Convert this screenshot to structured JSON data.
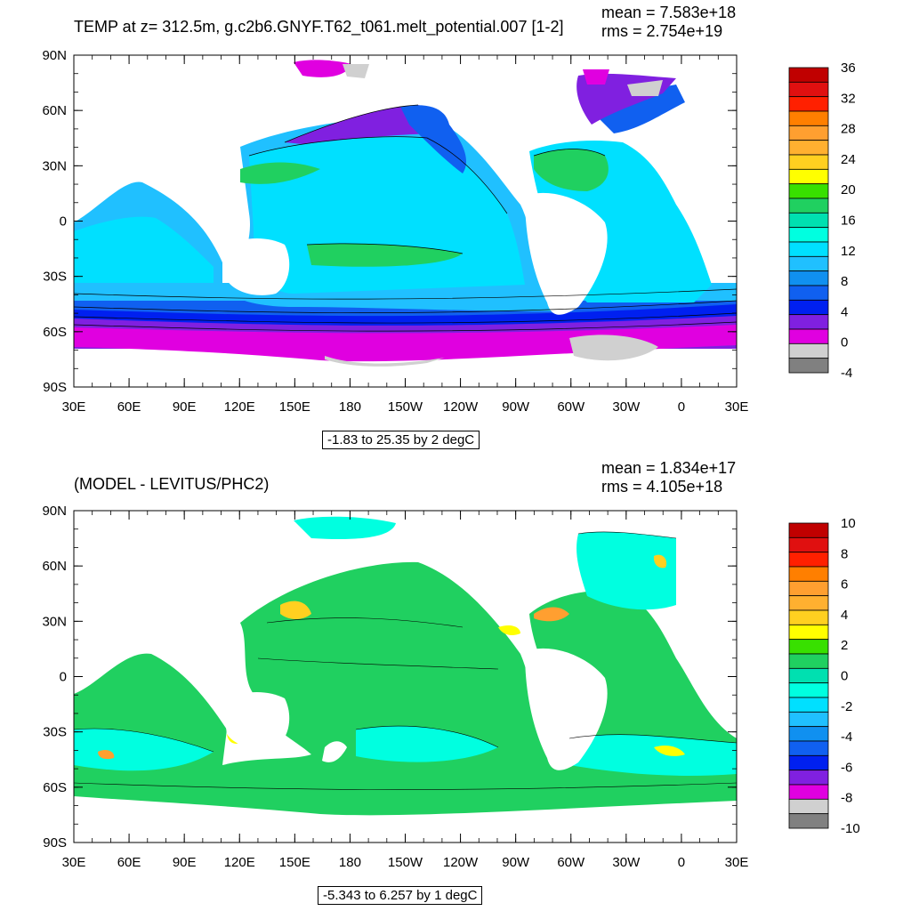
{
  "panel1": {
    "title": "TEMP at z= 312.5m, g.c2b6.GNYF.T62_t061.melt_potential.007 [1-2]",
    "mean": "mean = 7.583e+18",
    "rms": "rms = 2.754e+19",
    "range": "-1.83 to 25.35 by 2 degC",
    "lat_labels": [
      "90N",
      "60N",
      "30N",
      "0",
      "30S",
      "60S",
      "90S"
    ],
    "lon_labels": [
      "30E",
      "60E",
      "90E",
      "120E",
      "150E",
      "180",
      "150W",
      "120W",
      "90W",
      "60W",
      "30W",
      "0",
      "30E"
    ],
    "colorbar_labels": [
      "36",
      "32",
      "28",
      "24",
      "20",
      "16",
      "12",
      "8",
      "4",
      "0",
      "-4"
    ],
    "colorbar_colors": [
      "#c00000",
      "#e01010",
      "#ff2000",
      "#ff7f00",
      "#ff9f30",
      "#ffb030",
      "#ffd020",
      "#ffff00",
      "#38e000",
      "#20d060",
      "#00e0b0",
      "#00ffe0",
      "#00e0ff",
      "#20c0ff",
      "#1090f0",
      "#1060f0",
      "#0020f0",
      "#8020e0",
      "#e000e0",
      "#d0d0d0",
      "#808080"
    ]
  },
  "panel2": {
    "title": "(MODEL - LEVITUS/PHC2)",
    "mean": "mean = 1.834e+17",
    "rms": "rms = 4.105e+18",
    "range": "-5.343 to 6.257 by 1 degC",
    "lat_labels": [
      "90N",
      "60N",
      "30N",
      "0",
      "30S",
      "60S",
      "90S"
    ],
    "lon_labels": [
      "30E",
      "60E",
      "90E",
      "120E",
      "150E",
      "180",
      "150W",
      "120W",
      "90W",
      "60W",
      "30W",
      "0",
      "30E"
    ],
    "colorbar_labels": [
      "10",
      "8",
      "6",
      "4",
      "2",
      "0",
      "-2",
      "-4",
      "-6",
      "-8",
      "-10"
    ],
    "colorbar_colors": [
      "#c00000",
      "#e01010",
      "#ff2000",
      "#ff7f00",
      "#ff9f30",
      "#ffb030",
      "#ffd020",
      "#ffff00",
      "#38e000",
      "#20d060",
      "#00e0b0",
      "#00ffe0",
      "#00e0ff",
      "#20c0ff",
      "#1090f0",
      "#1060f0",
      "#0020f0",
      "#8020e0",
      "#e000e0",
      "#d0d0d0",
      "#808080"
    ]
  }
}
